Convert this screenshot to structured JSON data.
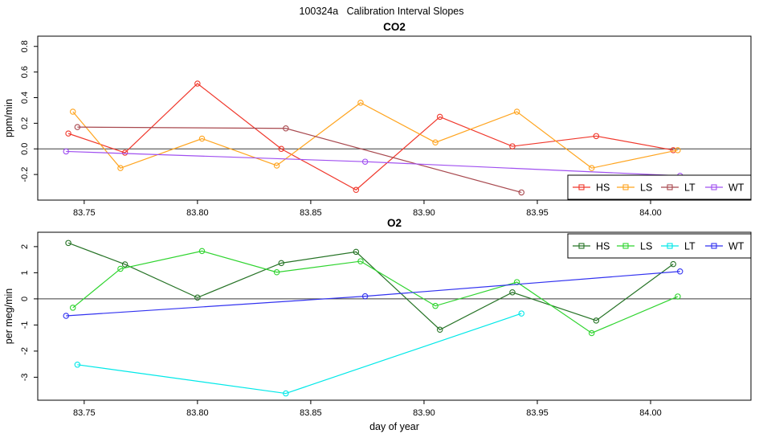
{
  "title": "100324a   Calibration Interval Slopes",
  "chart_data": [
    {
      "type": "line",
      "title": "CO2",
      "xlabel": "",
      "ylabel": "ppm/min",
      "xlim": [
        83.7295,
        84.0443
      ],
      "ylim": [
        -0.4,
        0.88
      ],
      "x_ticks": [
        83.75,
        83.8,
        83.85,
        83.9,
        83.95,
        84.0
      ],
      "x_tick_labels": [
        "83.75",
        "83.80",
        "83.85",
        "83.90",
        "83.95",
        "84.00"
      ],
      "y_ticks": [
        -0.2,
        0.0,
        0.2,
        0.4,
        0.6,
        0.8
      ],
      "y_tick_labels": [
        "-0.2",
        "0.0",
        "0.2",
        "0.4",
        "0.6",
        "0.8"
      ],
      "zero_line": true,
      "grid": false,
      "legend_position": "bottom-right",
      "series": [
        {
          "name": "HS",
          "color": "#f0382c",
          "x": [
            83.743,
            83.768,
            83.8,
            83.837,
            83.87,
            83.907,
            83.939,
            83.976,
            84.01
          ],
          "y": [
            0.12,
            -0.03,
            0.51,
            0.0,
            -0.32,
            0.25,
            0.02,
            0.1,
            -0.01
          ]
        },
        {
          "name": "LS",
          "color": "#ffa41e",
          "x": [
            83.745,
            83.766,
            83.802,
            83.835,
            83.872,
            83.905,
            83.941,
            83.974,
            84.012
          ],
          "y": [
            0.29,
            -0.15,
            0.08,
            -0.13,
            0.36,
            0.05,
            0.29,
            -0.15,
            -0.01
          ]
        },
        {
          "name": "LT",
          "color": "#a8494f",
          "x": [
            83.747,
            83.839,
            83.943
          ],
          "y": [
            0.17,
            0.16,
            -0.34
          ]
        },
        {
          "name": "WT",
          "color": "#a050f0",
          "x": [
            83.742,
            83.874,
            84.013
          ],
          "y": [
            -0.02,
            -0.1,
            -0.21
          ]
        }
      ]
    },
    {
      "type": "line",
      "title": "O2",
      "xlabel": "day of year",
      "ylabel": "per meg/min",
      "xlim": [
        83.7295,
        84.0443
      ],
      "ylim": [
        -3.88,
        2.55
      ],
      "x_ticks": [
        83.75,
        83.8,
        83.85,
        83.9,
        83.95,
        84.0
      ],
      "x_tick_labels": [
        "83.75",
        "83.80",
        "83.85",
        "83.90",
        "83.95",
        "84.00"
      ],
      "y_ticks": [
        -3,
        -2,
        -1,
        0,
        1,
        2
      ],
      "y_tick_labels": [
        "-3",
        "-2",
        "-1",
        "0",
        "1",
        "2"
      ],
      "zero_line": true,
      "grid": false,
      "legend_position": "top-right",
      "series": [
        {
          "name": "HS",
          "color": "#267326",
          "x": [
            83.743,
            83.768,
            83.8,
            83.837,
            83.87,
            83.907,
            83.939,
            83.976,
            84.01
          ],
          "y": [
            2.14,
            1.32,
            0.05,
            1.37,
            1.8,
            -1.18,
            0.25,
            -0.83,
            1.33
          ]
        },
        {
          "name": "LS",
          "color": "#2fd42f",
          "x": [
            83.745,
            83.766,
            83.802,
            83.835,
            83.872,
            83.905,
            83.941,
            83.974,
            84.012
          ],
          "y": [
            -0.34,
            1.15,
            1.83,
            1.02,
            1.44,
            -0.27,
            0.64,
            -1.31,
            0.09
          ]
        },
        {
          "name": "LT",
          "color": "#00e8e8",
          "x": [
            83.747,
            83.839,
            83.943
          ],
          "y": [
            -2.52,
            -3.62,
            -0.56
          ]
        },
        {
          "name": "WT",
          "color": "#3232f0",
          "x": [
            83.742,
            83.874,
            84.013
          ],
          "y": [
            -0.65,
            0.1,
            1.05
          ]
        }
      ]
    }
  ]
}
